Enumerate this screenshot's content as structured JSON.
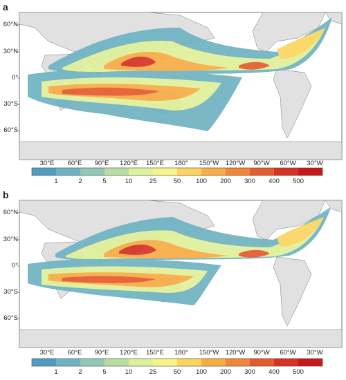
{
  "panels": [
    {
      "letter": "a",
      "lat_labels": [
        "60°N",
        "30°N",
        "0°",
        "30°S",
        "60°S"
      ],
      "lon_labels": [
        "30°E",
        "60°E",
        "90°E",
        "120°E",
        "150°E",
        "180°",
        "150°W",
        "120°W",
        "90°W",
        "60°W",
        "30°W"
      ],
      "colorbar_labels": [
        "1",
        "2",
        "5",
        "10",
        "25",
        "50",
        "100",
        "200",
        "300",
        "400",
        "500"
      ]
    },
    {
      "letter": "b",
      "lat_labels": [
        "60°N",
        "30°N",
        "0°",
        "30°S",
        "60°S"
      ],
      "lon_labels": [
        "30°E",
        "60°E",
        "90°E",
        "120°E",
        "150°E",
        "180°",
        "150°W",
        "120°W",
        "90°W",
        "60°W",
        "30°W"
      ],
      "colorbar_labels": [
        "1",
        "2",
        "5",
        "10",
        "25",
        "50",
        "100",
        "200",
        "300",
        "400",
        "500"
      ]
    }
  ],
  "colors": {
    "land": "#e1e1e1",
    "ocean": "#ffffff",
    "scale": [
      "#4f9dc0",
      "#6fb3c2",
      "#92c8b6",
      "#b8dca2",
      "#dff09a",
      "#f7f48a",
      "#fbd560",
      "#f8ac45",
      "#f08638",
      "#e45b2e",
      "#d63324",
      "#c7171b"
    ]
  }
}
